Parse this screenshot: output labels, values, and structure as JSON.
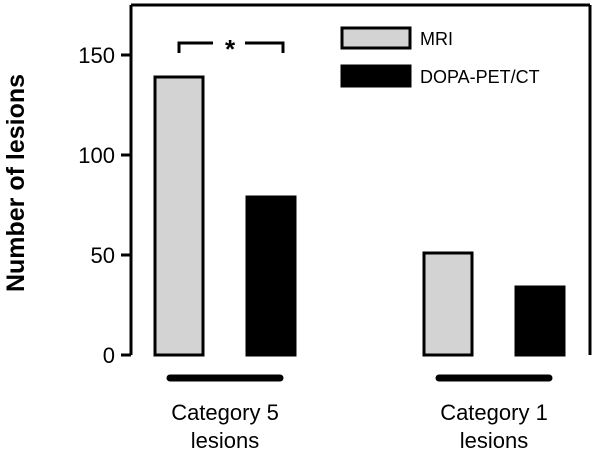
{
  "chart_data": {
    "type": "bar",
    "title": "",
    "xlabel": "",
    "ylabel": "Number of lesions",
    "ylim": [
      0,
      175
    ],
    "yticks": [
      0,
      50,
      100,
      150
    ],
    "ytick_labels": [
      "0",
      "50",
      "100",
      "150"
    ],
    "categories": [
      {
        "line1": "Category 5",
        "line2": "lesions"
      },
      {
        "line1": "Category 1",
        "line2": "lesions"
      }
    ],
    "series": [
      {
        "name": "MRI",
        "color": "#d3d3d3",
        "values": [
          139,
          51
        ]
      },
      {
        "name": "DOPA-PET/CT",
        "color": "#000000",
        "values": [
          79,
          34
        ]
      }
    ],
    "legend": "top-right",
    "grid": false,
    "annotations": [
      {
        "text": "*",
        "type": "significance-bracket",
        "category_index": 0
      }
    ]
  }
}
